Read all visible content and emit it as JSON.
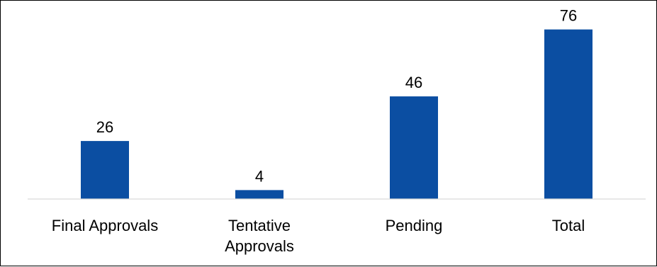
{
  "chart_data": {
    "type": "bar",
    "categories": [
      [
        "Final Approvals"
      ],
      [
        "Tentative",
        "Approvals"
      ],
      [
        "Pending"
      ],
      [
        "Total"
      ]
    ],
    "values": [
      26,
      4,
      46,
      76
    ],
    "data_labels": [
      "26",
      "4",
      "46",
      "76"
    ],
    "title": "",
    "xlabel": "",
    "ylabel": "",
    "ylim": [
      0,
      80
    ],
    "grid": false,
    "legend": "none",
    "colors": {
      "bar": "#0B4EA2",
      "axis": "#D9D9D9",
      "text": "#000000",
      "border": "#000000"
    }
  }
}
